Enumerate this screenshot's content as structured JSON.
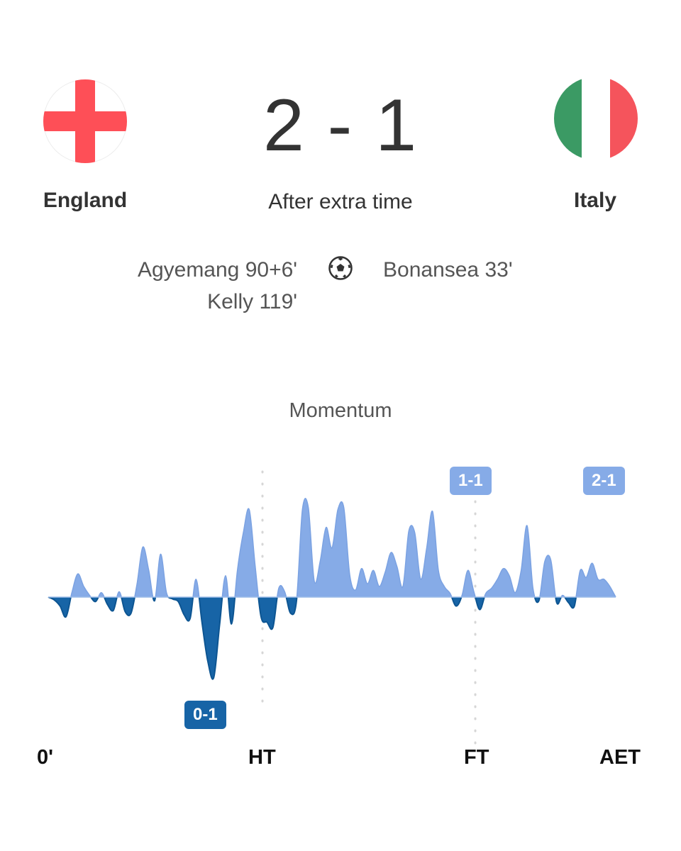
{
  "match": {
    "home": {
      "name": "England",
      "flag": "england-flag",
      "flag_colors": [
        "#ffffff",
        "#fe4f57"
      ]
    },
    "away": {
      "name": "Italy",
      "flag": "italy-flag",
      "flag_colors": [
        "#3b9a64",
        "#ffffff",
        "#f5545c"
      ]
    },
    "score": "2 - 1",
    "status": "After extra time",
    "goal_icon": "soccer-ball-icon",
    "home_scorers": [
      "Agyemang 90+6'",
      "Kelly 119'"
    ],
    "away_scorers": [
      "Bonansea 33'"
    ]
  },
  "momentum": {
    "title": "Momentum",
    "ticks": [
      "0'",
      "HT",
      "FT",
      "AET"
    ],
    "colors": {
      "home": "#86abe7",
      "away": "#1764a6"
    },
    "goal_badges": [
      "1-1",
      "2-1",
      "0-1"
    ]
  },
  "chart_data": {
    "type": "area",
    "title": "Momentum",
    "xlabel": "",
    "ylabel": "",
    "x_ticks": [
      "0'",
      "HT",
      "FT",
      "AET"
    ],
    "ylim": [
      -1,
      1
    ],
    "series": [
      {
        "name": "",
        "values": [
          0,
          -0.03,
          -0.1,
          -0.22,
          0.05,
          0.26,
          0.12,
          0.02,
          -0.05,
          0.05,
          -0.08,
          -0.15,
          0.06,
          -0.16,
          -0.18,
          0.14,
          0.56,
          0.3,
          -0.04,
          0.48,
          0.05,
          -0.02,
          -0.05,
          -0.2,
          -0.24,
          0.2,
          -0.28,
          -0.72,
          -0.9,
          -0.3,
          0.24,
          -0.3,
          0.3,
          0.72,
          0.98,
          0.35,
          -0.22,
          -0.28,
          -0.34,
          0.1,
          0.06,
          -0.18,
          -0.04,
          0.98,
          1.0,
          0.18,
          0.4,
          0.78,
          0.55,
          0.98,
          1.0,
          0.25,
          0.08,
          0.32,
          0.15,
          0.3,
          0.12,
          0.28,
          0.5,
          0.34,
          0.12,
          0.74,
          0.72,
          0.2,
          0.54,
          0.96,
          0.3,
          0.12,
          0.04,
          -0.1,
          0.02,
          0.3,
          0.06,
          -0.14,
          0.04,
          0.1,
          0.2,
          0.32,
          0.24,
          0.05,
          0.3,
          0.8,
          0.1,
          -0.04,
          0.4,
          0.42,
          -0.06,
          0.02,
          -0.06,
          -0.1,
          0.3,
          0.22,
          0.38,
          0.2,
          0.2,
          0.12,
          0.0
        ]
      }
    ],
    "goals": [
      {
        "label": "1-1",
        "team": "home",
        "x_fraction": 0.75
      },
      {
        "label": "2-1",
        "team": "home",
        "x_fraction": 0.99
      },
      {
        "label": "0-1",
        "team": "away",
        "x_fraction": 0.28
      }
    ]
  }
}
